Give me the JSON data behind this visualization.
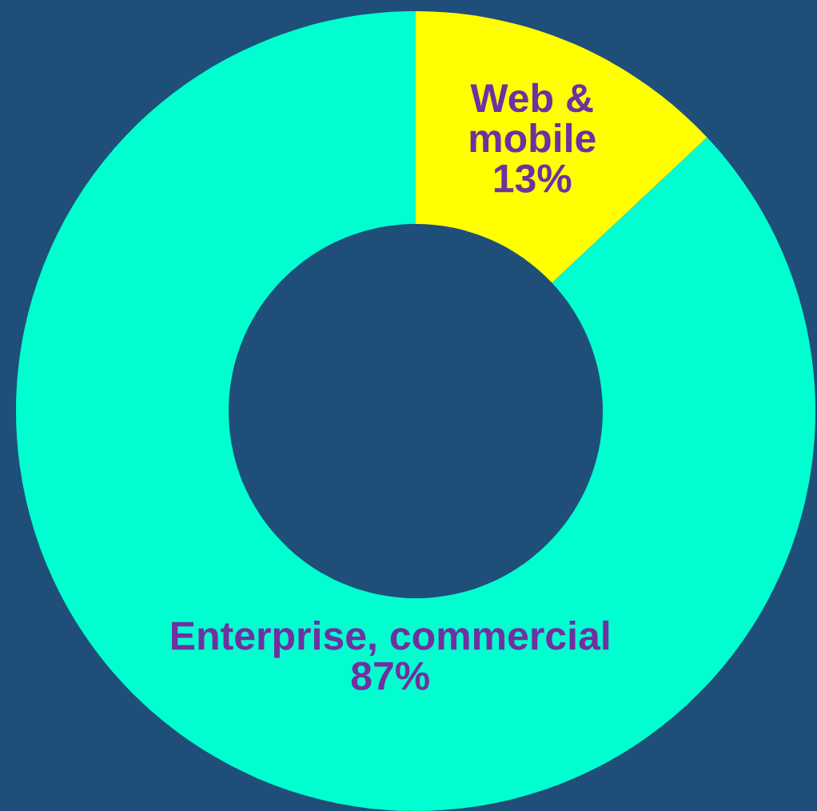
{
  "chart_data": {
    "type": "donut",
    "categories": [
      "Web &\nmobile",
      "Enterprise, commercial"
    ],
    "values": [
      13,
      87
    ],
    "colors": [
      "#ffff00",
      "#00ffd0"
    ],
    "value_labels": [
      "13%",
      "87%"
    ],
    "legend": false
  }
}
